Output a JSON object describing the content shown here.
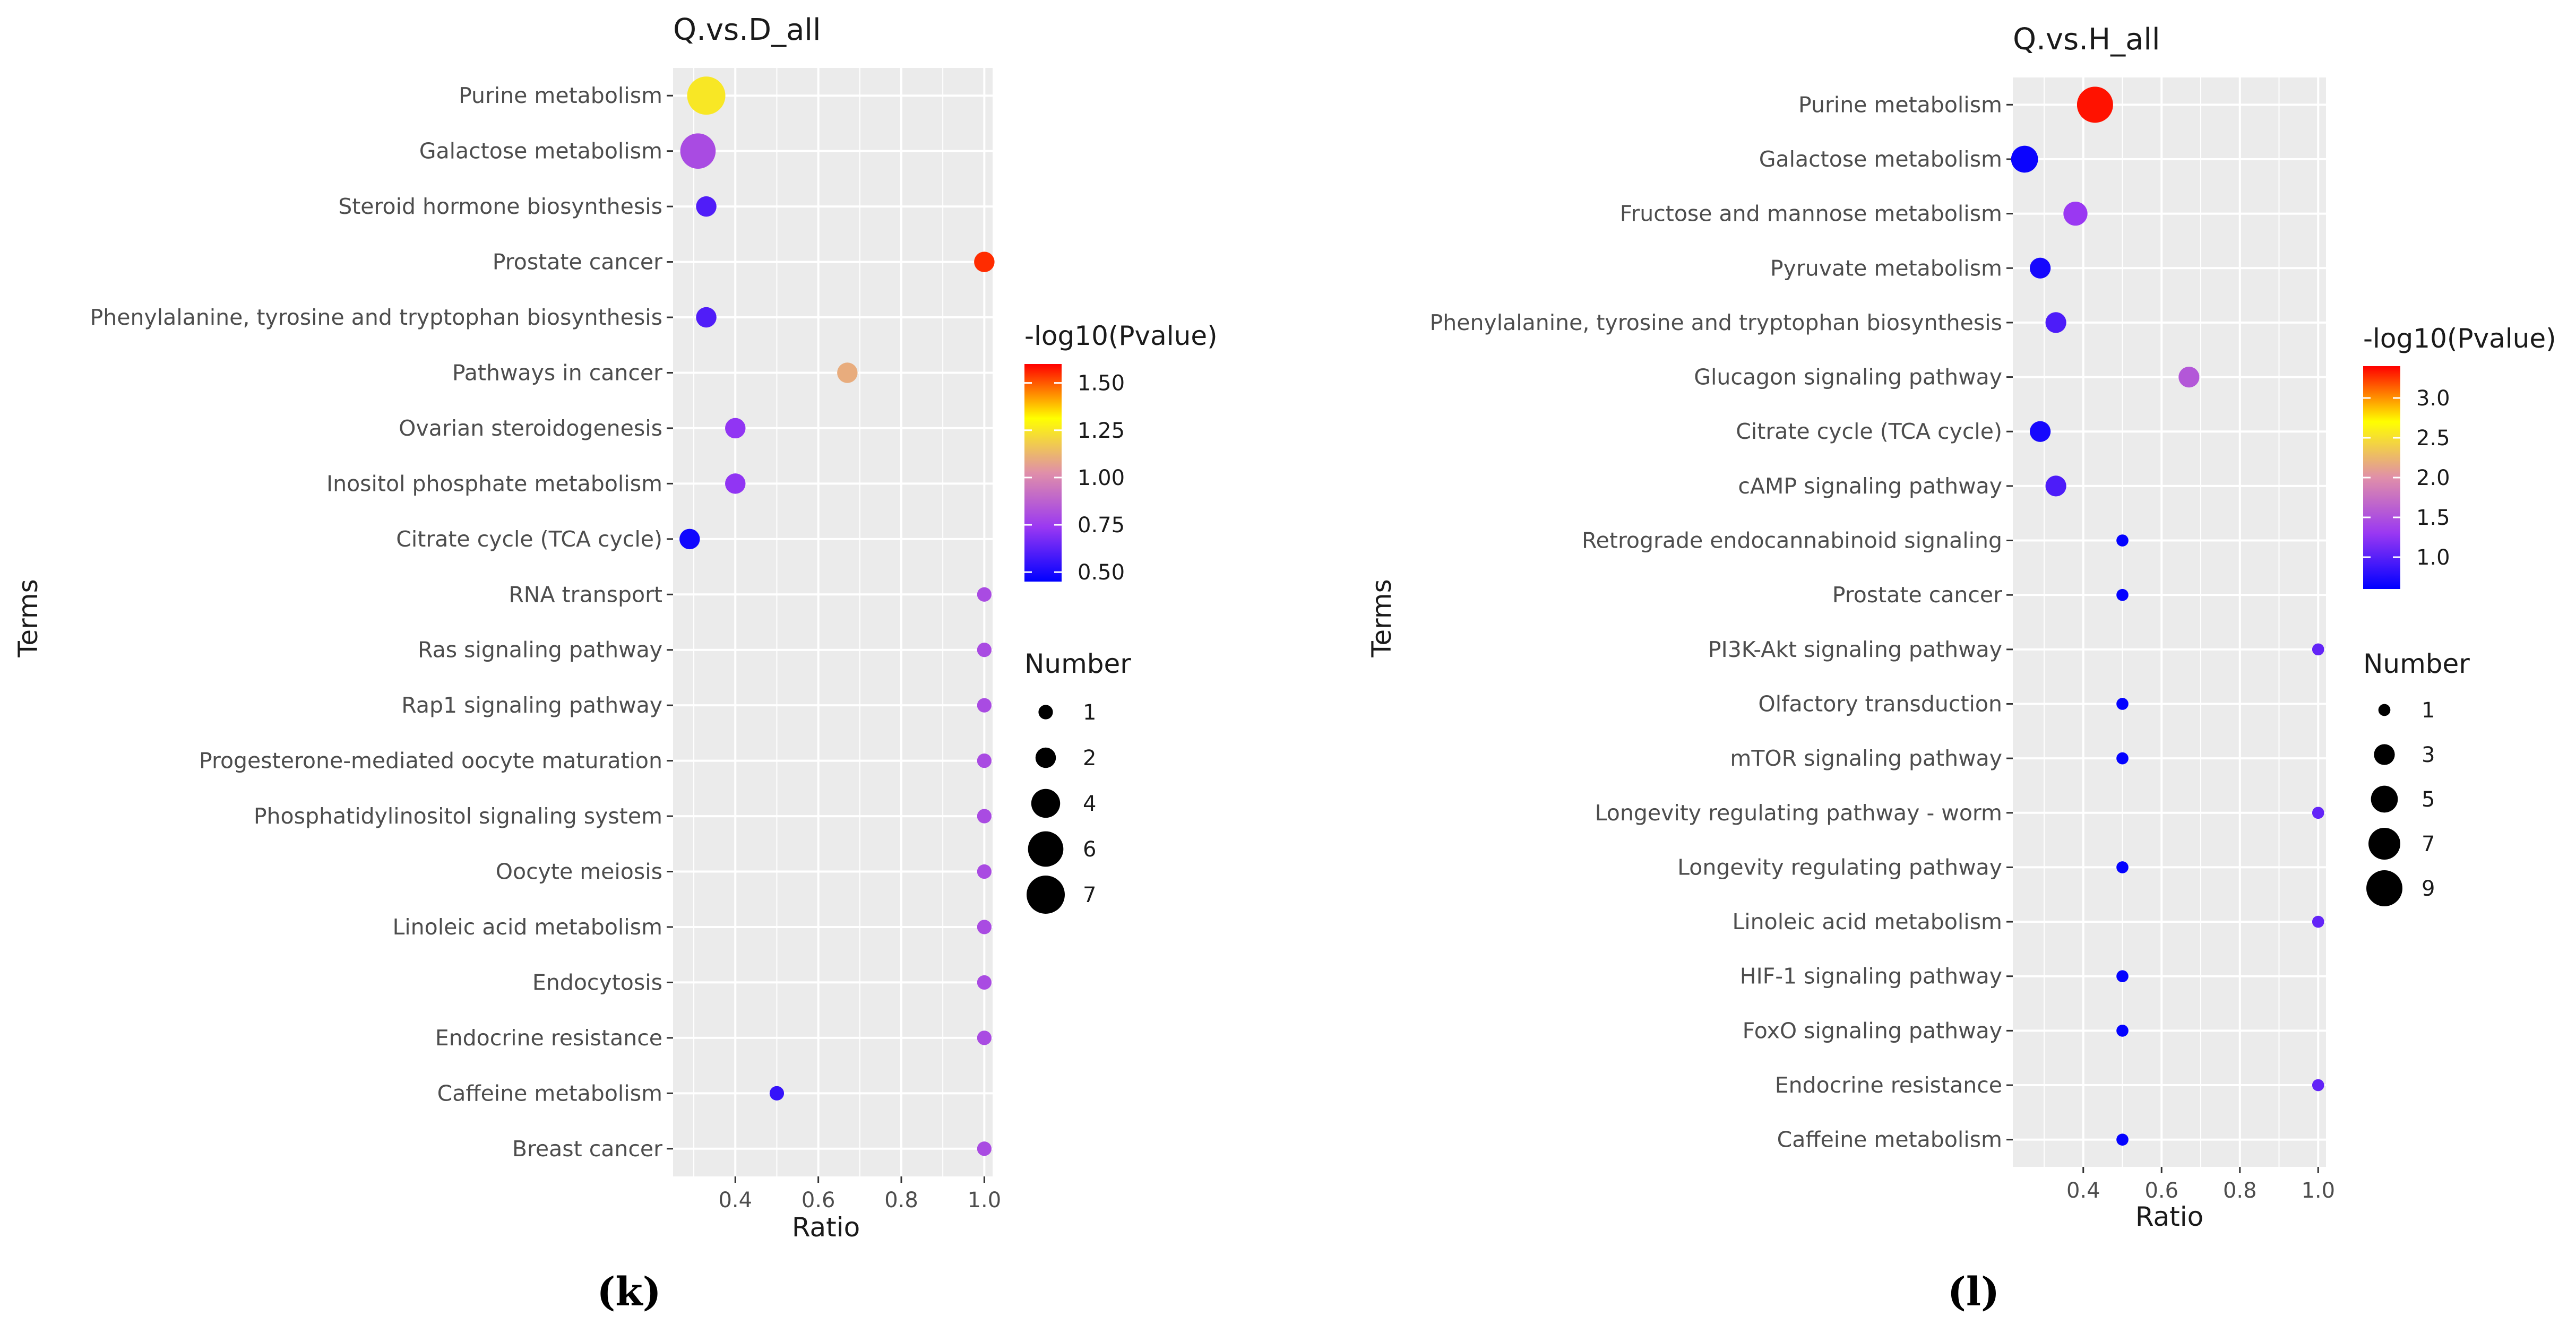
{
  "chart_data": [
    {
      "type": "scatter",
      "title": "Q.vs.D_all",
      "xlabel": "Ratio",
      "ylabel": "Terms",
      "caption": "(k)",
      "xlim": [
        0.25,
        1.02
      ],
      "x_ticks": [
        0.4,
        0.6,
        0.8,
        1.0
      ],
      "x_tick_labels": [
        "0.4",
        "0.6",
        "0.8",
        "1.0"
      ],
      "color_scale": {
        "title": "-log10(Pvalue)",
        "min": 0.45,
        "max": 1.6,
        "ticks": [
          0.5,
          0.75,
          1.0,
          1.25,
          1.5
        ],
        "tick_labels": [
          "0.50",
          "0.75",
          "1.00",
          "1.25",
          "1.50"
        ]
      },
      "size_scale": {
        "title": "Number",
        "breaks": [
          1,
          2,
          4,
          6,
          7
        ],
        "labels": [
          "1",
          "2",
          "4",
          "6",
          "7"
        ],
        "max_value": 7
      },
      "points": [
        {
          "term": "Purine metabolism",
          "ratio": 0.33,
          "number": 7,
          "neglog10p": 1.25
        },
        {
          "term": "Galactose metabolism",
          "ratio": 0.31,
          "number": 6,
          "neglog10p": 0.8
        },
        {
          "term": "Steroid hormone biosynthesis",
          "ratio": 0.33,
          "number": 2,
          "neglog10p": 0.6
        },
        {
          "term": "Prostate cancer",
          "ratio": 1.0,
          "number": 2,
          "neglog10p": 1.55
        },
        {
          "term": "Phenylalanine, tyrosine and tryptophan biosynthesis",
          "ratio": 0.33,
          "number": 2,
          "neglog10p": 0.6
        },
        {
          "term": "Pathways in cancer",
          "ratio": 0.67,
          "number": 2,
          "neglog10p": 1.1
        },
        {
          "term": "Ovarian steroidogenesis",
          "ratio": 0.4,
          "number": 2,
          "neglog10p": 0.72
        },
        {
          "term": "Inositol phosphate metabolism",
          "ratio": 0.4,
          "number": 2,
          "neglog10p": 0.72
        },
        {
          "term": "Citrate cycle (TCA cycle)",
          "ratio": 0.29,
          "number": 2,
          "neglog10p": 0.48
        },
        {
          "term": "RNA transport",
          "ratio": 1.0,
          "number": 1,
          "neglog10p": 0.8
        },
        {
          "term": "Ras signaling pathway",
          "ratio": 1.0,
          "number": 1,
          "neglog10p": 0.8
        },
        {
          "term": "Rap1 signaling pathway",
          "ratio": 1.0,
          "number": 1,
          "neglog10p": 0.8
        },
        {
          "term": "Progesterone-mediated oocyte maturation",
          "ratio": 1.0,
          "number": 1,
          "neglog10p": 0.8
        },
        {
          "term": "Phosphatidylinositol signaling system",
          "ratio": 1.0,
          "number": 1,
          "neglog10p": 0.8
        },
        {
          "term": "Oocyte meiosis",
          "ratio": 1.0,
          "number": 1,
          "neglog10p": 0.8
        },
        {
          "term": "Linoleic acid metabolism",
          "ratio": 1.0,
          "number": 1,
          "neglog10p": 0.8
        },
        {
          "term": "Endocytosis",
          "ratio": 1.0,
          "number": 1,
          "neglog10p": 0.8
        },
        {
          "term": "Endocrine resistance",
          "ratio": 1.0,
          "number": 1,
          "neglog10p": 0.8
        },
        {
          "term": "Caffeine metabolism",
          "ratio": 0.5,
          "number": 1,
          "neglog10p": 0.55
        },
        {
          "term": "Breast cancer",
          "ratio": 1.0,
          "number": 1,
          "neglog10p": 0.8
        }
      ]
    },
    {
      "type": "scatter",
      "title": "Q.vs.H_all",
      "xlabel": "Ratio",
      "ylabel": "Terms",
      "caption": "(l)",
      "xlim": [
        0.22,
        1.02
      ],
      "x_ticks": [
        0.4,
        0.6,
        0.8,
        1.0
      ],
      "x_tick_labels": [
        "0.4",
        "0.6",
        "0.8",
        "1.0"
      ],
      "color_scale": {
        "title": "-log10(Pvalue)",
        "min": 0.6,
        "max": 3.4,
        "ticks": [
          1.0,
          1.5,
          2.0,
          2.5,
          3.0
        ],
        "tick_labels": [
          "1.0",
          "1.5",
          "2.0",
          "2.5",
          "3.0"
        ]
      },
      "size_scale": {
        "title": "Number",
        "breaks": [
          1,
          3,
          5,
          7,
          9
        ],
        "labels": [
          "1",
          "3",
          "5",
          "7",
          "9"
        ],
        "max_value": 9
      },
      "points": [
        {
          "term": "Purine metabolism",
          "ratio": 0.43,
          "number": 9,
          "neglog10p": 3.35
        },
        {
          "term": "Galactose metabolism",
          "ratio": 0.25,
          "number": 5,
          "neglog10p": 0.65
        },
        {
          "term": "Fructose and mannose metabolism",
          "ratio": 0.38,
          "number": 4,
          "neglog10p": 1.3
        },
        {
          "term": "Pyruvate metabolism",
          "ratio": 0.29,
          "number": 3,
          "neglog10p": 0.7
        },
        {
          "term": "Phenylalanine, tyrosine and tryptophan biosynthesis",
          "ratio": 0.33,
          "number": 3,
          "neglog10p": 0.95
        },
        {
          "term": "Glucagon signaling pathway",
          "ratio": 0.67,
          "number": 3,
          "neglog10p": 1.55
        },
        {
          "term": "Citrate cycle (TCA cycle)",
          "ratio": 0.29,
          "number": 3,
          "neglog10p": 0.7
        },
        {
          "term": "cAMP signaling pathway",
          "ratio": 0.33,
          "number": 3,
          "neglog10p": 0.95
        },
        {
          "term": "Retrograde endocannabinoid signaling",
          "ratio": 0.5,
          "number": 1,
          "neglog10p": 0.62
        },
        {
          "term": "Prostate cancer",
          "ratio": 0.5,
          "number": 1,
          "neglog10p": 0.62
        },
        {
          "term": "PI3K-Akt signaling pathway",
          "ratio": 1.0,
          "number": 1,
          "neglog10p": 1.05
        },
        {
          "term": "Olfactory transduction",
          "ratio": 0.5,
          "number": 1,
          "neglog10p": 0.62
        },
        {
          "term": "mTOR signaling pathway",
          "ratio": 0.5,
          "number": 1,
          "neglog10p": 0.62
        },
        {
          "term": "Longevity regulating pathway - worm",
          "ratio": 1.0,
          "number": 1,
          "neglog10p": 1.05
        },
        {
          "term": "Longevity regulating pathway",
          "ratio": 0.5,
          "number": 1,
          "neglog10p": 0.62
        },
        {
          "term": "Linoleic acid metabolism",
          "ratio": 1.0,
          "number": 1,
          "neglog10p": 1.05
        },
        {
          "term": "HIF-1 signaling pathway",
          "ratio": 0.5,
          "number": 1,
          "neglog10p": 0.62
        },
        {
          "term": "FoxO signaling pathway",
          "ratio": 0.5,
          "number": 1,
          "neglog10p": 0.62
        },
        {
          "term": "Endocrine resistance",
          "ratio": 1.0,
          "number": 1,
          "neglog10p": 1.05
        },
        {
          "term": "Caffeine metabolism",
          "ratio": 0.5,
          "number": 1,
          "neglog10p": 0.62
        }
      ]
    }
  ],
  "colors": {
    "panel_bg": "#ebebeb",
    "grid": "#ffffff",
    "gradient_low": "#0000ff",
    "gradient_mid_low": "#9a38f2",
    "gradient_mid": "#e08fa9",
    "gradient_mid_high": "#ffff00",
    "gradient_high": "#ff0000"
  }
}
